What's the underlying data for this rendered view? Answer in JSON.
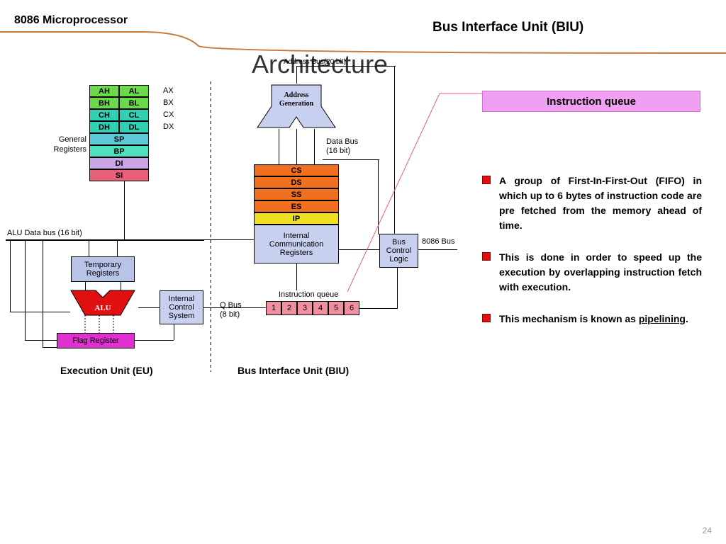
{
  "header": {
    "left_title": "8086 Microprocessor",
    "right_title": "Bus Interface Unit (BIU)",
    "curve_color": "#c97a3a",
    "divider_color": "#c97a3a"
  },
  "main_title": "Architecture",
  "diagram": {
    "general_registers_label": "General\nRegisters",
    "gpr": {
      "rows": [
        {
          "hi": "AH",
          "lo": "AL",
          "name": "AX",
          "color": "#6cd94c"
        },
        {
          "hi": "BH",
          "lo": "BL",
          "name": "BX",
          "color": "#6cd94c"
        },
        {
          "hi": "CH",
          "lo": "CL",
          "name": "CX",
          "color": "#31d0b5"
        },
        {
          "hi": "DH",
          "lo": "DL",
          "name": "DX",
          "color": "#31d0b5"
        }
      ],
      "ptr": [
        {
          "name": "SP",
          "color": "#5cc9d9"
        },
        {
          "name": "BP",
          "color": "#4fe0bf"
        },
        {
          "name": "DI",
          "color": "#c9a5e8"
        },
        {
          "name": "SI",
          "color": "#e85f7a"
        }
      ]
    },
    "alu_bus_label": "ALU Data bus (16 bit)",
    "temp_reg": {
      "label": "Temporary\nRegisters",
      "color": "#b8c3e8"
    },
    "alu": {
      "label": "ALU",
      "color": "#e01010",
      "text": "#ffffff"
    },
    "flag_reg": {
      "label": "Flag Register",
      "color": "#e030d0"
    },
    "ics": {
      "label": "Internal\nControl\nSystem",
      "color": "#c8d0f0"
    },
    "eu_label": "Execution Unit (EU)",
    "address_bus_label": "Address Bus(20  bit)",
    "addr_gen": {
      "label": "Address\nGeneration",
      "color": "#c8d0f0"
    },
    "data_bus_label": "Data Bus\n(16 bit)",
    "segments": {
      "rows": [
        {
          "name": "CS",
          "color": "#f07020"
        },
        {
          "name": "DS",
          "color": "#f07020"
        },
        {
          "name": "SS",
          "color": "#f07020"
        },
        {
          "name": "ES",
          "color": "#f07020"
        },
        {
          "name": "IP",
          "color": "#f0e020"
        }
      ],
      "icr": {
        "label": "Internal\nCommunication\nRegisters",
        "color": "#c8d0f0"
      }
    },
    "bcl": {
      "label": "Bus\nControl\nLogic",
      "color": "#c8d0f0"
    },
    "bus_8086_label": "8086 Bus",
    "q_bus_label": "Q Bus\n(8 bit)",
    "iq_label": "Instruction queue",
    "queue": {
      "cells": [
        "1",
        "2",
        "3",
        "4",
        "5",
        "6"
      ],
      "color": "#f08fa0"
    },
    "biu_label": "Bus Interface Unit (BIU)"
  },
  "callout": {
    "title": "Instruction queue",
    "bg_color": "#f0a0f0",
    "border_color": "#d070d0",
    "bullet_color": "#e01010",
    "items": [
      "A group of First-In-First-Out (FIFO) in which up to 6 bytes of instruction code are pre fetched from the memory ahead of time.",
      "This is done in order to speed up the execution by overlapping instruction fetch with execution.",
      "This mechanism is known as <u>pipelining</u>."
    ]
  },
  "page_number": "24"
}
